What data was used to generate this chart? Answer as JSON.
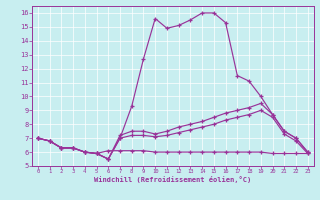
{
  "xlabel": "Windchill (Refroidissement éolien,°C)",
  "bg_color": "#c8eef0",
  "grid_color": "#b0d8da",
  "line_color": "#993399",
  "xlim": [
    -0.5,
    23.5
  ],
  "ylim": [
    5,
    16.5
  ],
  "yticks": [
    5,
    6,
    7,
    8,
    9,
    10,
    11,
    12,
    13,
    14,
    15,
    16
  ],
  "xticks": [
    0,
    1,
    2,
    3,
    4,
    5,
    6,
    7,
    8,
    9,
    10,
    11,
    12,
    13,
    14,
    15,
    16,
    17,
    18,
    19,
    20,
    21,
    22,
    23
  ],
  "line1_x": [
    0,
    1,
    2,
    3,
    4,
    5,
    6,
    7,
    8,
    9,
    10,
    11,
    12,
    13,
    14,
    15,
    16,
    17,
    18,
    19,
    20,
    21,
    22,
    23
  ],
  "line1_y": [
    7.0,
    6.8,
    6.3,
    6.3,
    6.0,
    5.9,
    5.5,
    7.0,
    9.3,
    12.7,
    15.6,
    14.9,
    15.1,
    15.5,
    16.0,
    16.0,
    15.3,
    11.5,
    11.1,
    10.0,
    8.7,
    7.5,
    7.0,
    6.0
  ],
  "line2_x": [
    0,
    1,
    2,
    3,
    4,
    5,
    6,
    7,
    8,
    9,
    10,
    11,
    12,
    13,
    14,
    15,
    16,
    17,
    18,
    19,
    20,
    21,
    22,
    23
  ],
  "line2_y": [
    7.0,
    6.8,
    6.3,
    6.3,
    6.0,
    5.9,
    5.5,
    7.2,
    7.5,
    7.5,
    7.3,
    7.5,
    7.8,
    8.0,
    8.2,
    8.5,
    8.8,
    9.0,
    9.2,
    9.5,
    8.7,
    7.5,
    7.0,
    6.0
  ],
  "line3_x": [
    0,
    1,
    2,
    3,
    4,
    5,
    6,
    7,
    8,
    9,
    10,
    11,
    12,
    13,
    14,
    15,
    16,
    17,
    18,
    19,
    20,
    21,
    22,
    23
  ],
  "line3_y": [
    7.0,
    6.8,
    6.3,
    6.3,
    6.0,
    5.9,
    5.5,
    7.0,
    7.2,
    7.2,
    7.1,
    7.2,
    7.4,
    7.6,
    7.8,
    8.0,
    8.3,
    8.5,
    8.7,
    9.0,
    8.5,
    7.3,
    6.8,
    5.9
  ],
  "line4_x": [
    0,
    1,
    2,
    3,
    4,
    5,
    6,
    7,
    8,
    9,
    10,
    11,
    12,
    13,
    14,
    15,
    16,
    17,
    18,
    19,
    20,
    21,
    22,
    23
  ],
  "line4_y": [
    7.0,
    6.8,
    6.3,
    6.3,
    6.0,
    5.9,
    6.1,
    6.1,
    6.1,
    6.1,
    6.0,
    6.0,
    6.0,
    6.0,
    6.0,
    6.0,
    6.0,
    6.0,
    6.0,
    6.0,
    5.9,
    5.9,
    5.9,
    5.9
  ]
}
